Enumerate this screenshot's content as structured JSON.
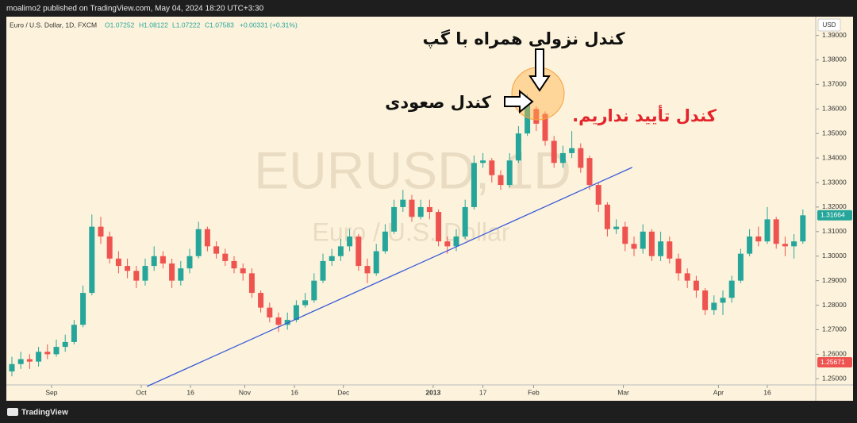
{
  "header": {
    "publisher": "moalimo2 published on TradingView.com, May 04, 2024 18:20 UTC+3:30"
  },
  "footer": {
    "brand": "TradingView"
  },
  "chart_data": {
    "type": "candlestick",
    "legend": {
      "symbol": "Euro / U.S. Dollar, 1D, FXCM",
      "open": "O1.07252",
      "high": "H1.08122",
      "low": "L1.07222",
      "close": "C1.07583",
      "change": "+0.00331 (+0.31%)"
    },
    "watermark": {
      "ticker": "EURUSD, 1D",
      "description": "Euro / U.S. Dollar"
    },
    "currency": "USD",
    "up_color": "#26a69a",
    "down_color": "#ef5350",
    "open": [
      1.253,
      1.256,
      1.258,
      1.257,
      1.261,
      1.26,
      1.263,
      1.265,
      1.272,
      1.285,
      1.312,
      1.308,
      1.299,
      1.296,
      1.294,
      1.29,
      1.296,
      1.3,
      1.297,
      1.29,
      1.295,
      1.3,
      1.311,
      1.304,
      1.301,
      1.298,
      1.295,
      1.293,
      1.285,
      1.279,
      1.275,
      1.272,
      1.274,
      1.28,
      1.282,
      1.29,
      1.298,
      1.3,
      1.304,
      1.308,
      1.296,
      1.293,
      1.302,
      1.31,
      1.32,
      1.323,
      1.316,
      1.32,
      1.318,
      1.306,
      1.304,
      1.308,
      1.32,
      1.338,
      1.339,
      1.333,
      1.329,
      1.339,
      1.35,
      1.36,
      1.358,
      1.347,
      1.338,
      1.342,
      1.344,
      1.34,
      1.329,
      1.321,
      1.311,
      1.312,
      1.305,
      1.303,
      1.31,
      1.3,
      1.306,
      1.299,
      1.293,
      1.29,
      1.286,
      1.278,
      1.281,
      1.283,
      1.29,
      1.301,
      1.308,
      1.306,
      1.315,
      1.305,
      1.304,
      1.306
    ],
    "high": [
      1.259,
      1.261,
      1.26,
      1.263,
      1.264,
      1.266,
      1.268,
      1.274,
      1.288,
      1.317,
      1.316,
      1.31,
      1.302,
      1.299,
      1.296,
      1.299,
      1.304,
      1.302,
      1.299,
      1.298,
      1.303,
      1.314,
      1.312,
      1.306,
      1.303,
      1.3,
      1.297,
      1.295,
      1.286,
      1.281,
      1.277,
      1.277,
      1.282,
      1.285,
      1.293,
      1.301,
      1.303,
      1.307,
      1.311,
      1.309,
      1.299,
      1.305,
      1.313,
      1.323,
      1.327,
      1.325,
      1.323,
      1.323,
      1.319,
      1.308,
      1.311,
      1.323,
      1.341,
      1.342,
      1.34,
      1.335,
      1.342,
      1.353,
      1.366,
      1.361,
      1.359,
      1.349,
      1.345,
      1.351,
      1.346,
      1.341,
      1.33,
      1.322,
      1.315,
      1.314,
      1.308,
      1.313,
      1.311,
      1.31,
      1.308,
      1.301,
      1.295,
      1.292,
      1.287,
      1.284,
      1.286,
      1.292,
      1.303,
      1.311,
      1.312,
      1.32,
      1.316,
      1.308,
      1.309,
      1.319
    ],
    "low": [
      1.251,
      1.254,
      1.254,
      1.255,
      1.258,
      1.259,
      1.261,
      1.264,
      1.271,
      1.284,
      1.305,
      1.297,
      1.293,
      1.291,
      1.287,
      1.288,
      1.294,
      1.295,
      1.287,
      1.288,
      1.293,
      1.299,
      1.302,
      1.299,
      1.296,
      1.293,
      1.29,
      1.283,
      1.277,
      1.273,
      1.269,
      1.27,
      1.273,
      1.279,
      1.281,
      1.289,
      1.296,
      1.298,
      1.302,
      1.294,
      1.289,
      1.292,
      1.301,
      1.309,
      1.318,
      1.314,
      1.315,
      1.315,
      1.304,
      1.301,
      1.302,
      1.307,
      1.319,
      1.336,
      1.33,
      1.327,
      1.328,
      1.338,
      1.349,
      1.351,
      1.345,
      1.336,
      1.336,
      1.34,
      1.334,
      1.327,
      1.318,
      1.308,
      1.309,
      1.302,
      1.3,
      1.301,
      1.298,
      1.298,
      1.297,
      1.29,
      1.287,
      1.283,
      1.276,
      1.276,
      1.276,
      1.281,
      1.289,
      1.3,
      1.304,
      1.305,
      1.303,
      1.3,
      1.299,
      1.305
    ],
    "close": [
      1.256,
      1.258,
      1.257,
      1.261,
      1.26,
      1.263,
      1.265,
      1.272,
      1.285,
      1.312,
      1.308,
      1.299,
      1.296,
      1.294,
      1.29,
      1.296,
      1.3,
      1.297,
      1.29,
      1.295,
      1.3,
      1.311,
      1.304,
      1.301,
      1.298,
      1.295,
      1.293,
      1.285,
      1.279,
      1.275,
      1.272,
      1.274,
      1.28,
      1.282,
      1.29,
      1.298,
      1.3,
      1.304,
      1.308,
      1.296,
      1.293,
      1.302,
      1.31,
      1.32,
      1.323,
      1.316,
      1.32,
      1.318,
      1.306,
      1.304,
      1.308,
      1.32,
      1.338,
      1.339,
      1.333,
      1.329,
      1.339,
      1.35,
      1.364,
      1.354,
      1.347,
      1.338,
      1.342,
      1.344,
      1.336,
      1.329,
      1.321,
      1.311,
      1.312,
      1.305,
      1.303,
      1.31,
      1.3,
      1.306,
      1.299,
      1.293,
      1.29,
      1.286,
      1.278,
      1.281,
      1.283,
      1.29,
      1.301,
      1.308,
      1.306,
      1.315,
      1.305,
      1.304,
      1.306,
      1.31664
    ],
    "ylim": [
      1.2475,
      1.3973
    ],
    "yticks": [
      {
        "value": 1.25,
        "label": "1.25000"
      },
      {
        "value": 1.26,
        "label": "1.26000"
      },
      {
        "value": 1.27,
        "label": "1.27000"
      },
      {
        "value": 1.28,
        "label": "1.28000"
      },
      {
        "value": 1.29,
        "label": "1.29000"
      },
      {
        "value": 1.3,
        "label": "1.30000"
      },
      {
        "value": 1.31,
        "label": "1.31000"
      },
      {
        "value": 1.32,
        "label": "1.32000"
      },
      {
        "value": 1.33,
        "label": "1.33000"
      },
      {
        "value": 1.34,
        "label": "1.34000"
      },
      {
        "value": 1.35,
        "label": "1.35000"
      },
      {
        "value": 1.36,
        "label": "1.36000"
      },
      {
        "value": 1.37,
        "label": "1.37000"
      },
      {
        "value": 1.38,
        "label": "1.38000"
      },
      {
        "value": 1.39,
        "label": "1.39000"
      }
    ],
    "xticks": [
      {
        "value": 4.46,
        "label": "Sep"
      },
      {
        "value": 14.55,
        "label": "Oct"
      },
      {
        "value": 20.1,
        "label": "16"
      },
      {
        "value": 26.2,
        "label": "Nov"
      },
      {
        "value": 31.8,
        "label": "16"
      },
      {
        "value": 37.3,
        "label": "Dec"
      },
      {
        "value": 47.4,
        "label": "2013"
      },
      {
        "value": 53.0,
        "label": "17"
      },
      {
        "value": 58.7,
        "label": "Feb"
      },
      {
        "value": 68.8,
        "label": "Mar"
      },
      {
        "value": 79.5,
        "label": "Apr"
      },
      {
        "value": 85.0,
        "label": "16"
      }
    ],
    "price_tags": [
      {
        "value": 1.31664,
        "label": "1.31664",
        "color": "#26a69a"
      },
      {
        "value": 1.25671,
        "label": "1.25671",
        "color": "#ef5350"
      }
    ],
    "trendline": {
      "x": [
        15.2,
        69.8
      ],
      "y": [
        1.2469,
        1.3362
      ],
      "color": "#3a5bd9"
    },
    "annotations": {
      "gap_candle": "کندل نزولی همراه با گپ",
      "bullish_candle": "کندل صعودی",
      "no_confirmation": "کندل تأیید نداریم."
    }
  }
}
